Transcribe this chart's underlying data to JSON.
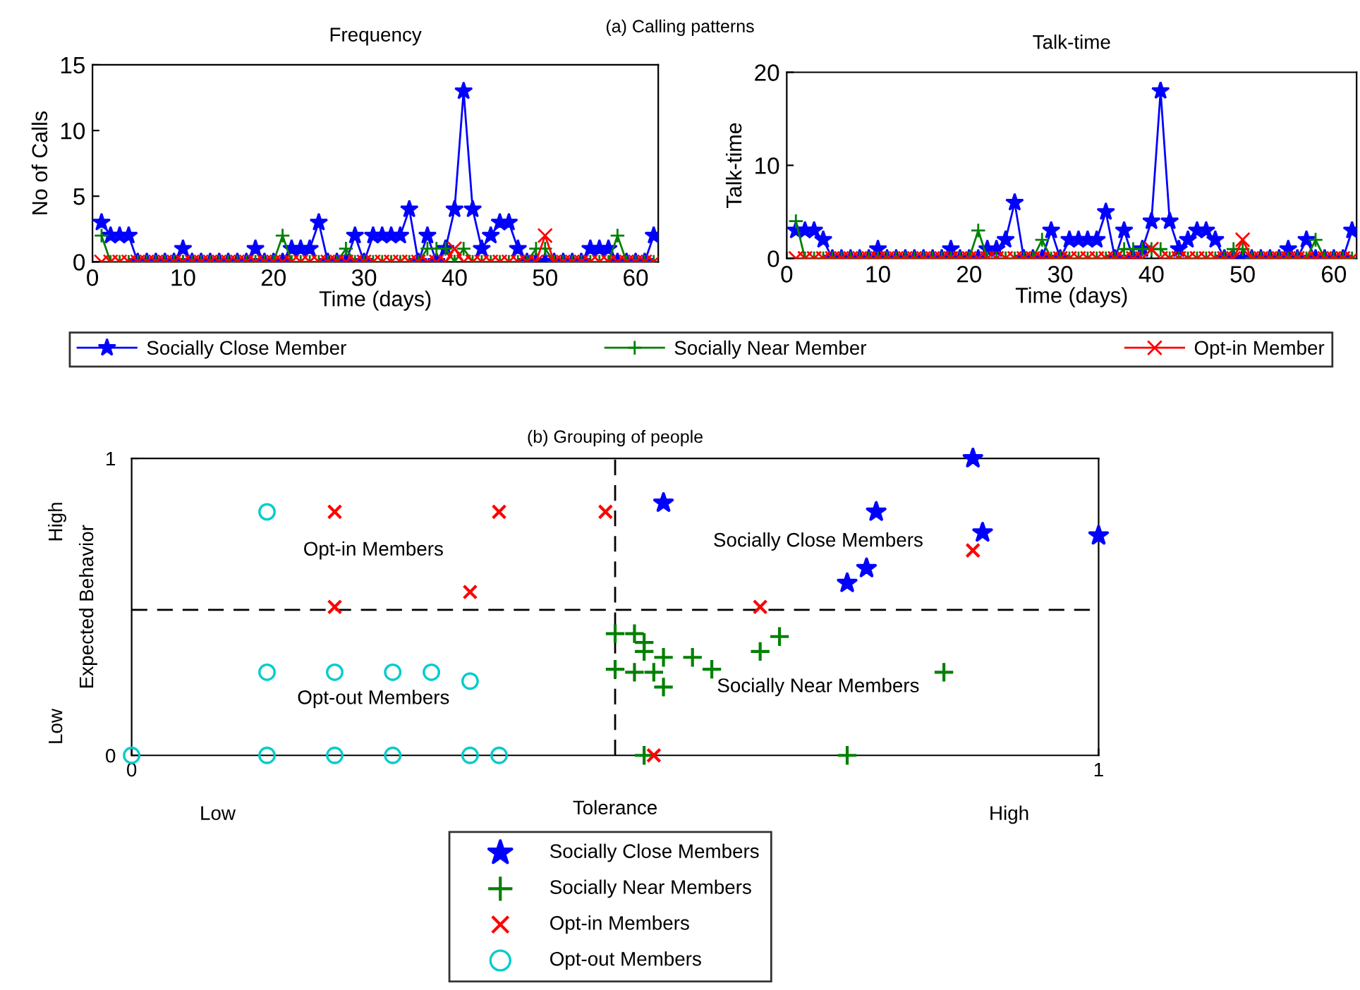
{
  "chart_data": [
    {
      "type": "line",
      "title": "Frequency",
      "xlabel": "Time (days)",
      "ylabel": "No of Calls",
      "annotations": [
        "(a) Calling patterns"
      ],
      "x": [
        1,
        2,
        3,
        4,
        5,
        6,
        7,
        8,
        9,
        10,
        11,
        12,
        13,
        14,
        15,
        16,
        17,
        18,
        19,
        20,
        21,
        22,
        23,
        24,
        25,
        26,
        27,
        28,
        29,
        30,
        31,
        32,
        33,
        34,
        35,
        36,
        37,
        38,
        39,
        40,
        41,
        42,
        43,
        44,
        45,
        46,
        47,
        48,
        49,
        50,
        51,
        52,
        53,
        54,
        55,
        56,
        57,
        58,
        59,
        60,
        61,
        62
      ],
      "xlim": [
        0,
        62.5
      ],
      "xticks": [
        0,
        10,
        20,
        30,
        40,
        50,
        60
      ],
      "ylim": [
        0,
        15
      ],
      "yticks": [
        0,
        5,
        10,
        15
      ],
      "grid": false,
      "legend": "bottom",
      "series": [
        {
          "name": "Socially Close Member",
          "color": "#0000ff",
          "marker": "star",
          "values": [
            3,
            2,
            2,
            2,
            0,
            0,
            0,
            0,
            0,
            1,
            0,
            0,
            0,
            0,
            0,
            0,
            0,
            1,
            0,
            0,
            0,
            1,
            1,
            1,
            3,
            0,
            0,
            0,
            2,
            0,
            2,
            2,
            2,
            2,
            4,
            0,
            2,
            0,
            1,
            4,
            13,
            4,
            1,
            2,
            3,
            3,
            1,
            0,
            0,
            0,
            0,
            0,
            0,
            0,
            1,
            1,
            1,
            0,
            0,
            0,
            0,
            2
          ]
        },
        {
          "name": "Socially Near Member",
          "color": "#008000",
          "marker": "plus",
          "values": [
            2,
            0,
            0,
            0,
            0,
            0,
            0,
            0,
            0,
            0,
            0,
            0,
            0,
            0,
            0,
            0,
            0,
            0,
            0,
            0,
            2,
            0,
            0,
            0,
            0,
            0,
            0,
            1,
            0,
            0,
            0,
            0,
            0,
            0,
            0,
            0,
            1,
            1,
            1,
            0,
            1,
            0,
            0,
            0,
            0,
            0,
            0,
            0,
            1,
            1,
            0,
            0,
            0,
            0,
            0,
            0,
            0,
            2,
            0,
            0,
            0,
            0
          ]
        },
        {
          "name": "Opt-in Member",
          "color": "#ff0000",
          "marker": "x",
          "values": [
            0,
            0,
            0,
            0,
            0,
            0,
            0,
            0,
            0,
            0,
            0,
            0,
            0,
            0,
            0,
            0,
            0,
            0,
            0,
            0,
            0,
            0,
            0,
            0,
            0,
            0,
            0,
            0,
            0,
            0,
            0,
            0,
            0,
            0,
            0,
            0,
            0,
            0,
            0,
            1,
            0,
            0,
            0,
            0,
            0,
            0,
            0,
            0,
            0,
            2,
            0,
            0,
            0,
            0,
            0,
            0,
            0,
            0,
            0,
            0,
            0,
            0
          ]
        }
      ]
    },
    {
      "type": "line",
      "title": "Talk-time",
      "xlabel": "Time (days)",
      "ylabel": "Talk-time",
      "x": [
        1,
        2,
        3,
        4,
        5,
        6,
        7,
        8,
        9,
        10,
        11,
        12,
        13,
        14,
        15,
        16,
        17,
        18,
        19,
        20,
        21,
        22,
        23,
        24,
        25,
        26,
        27,
        28,
        29,
        30,
        31,
        32,
        33,
        34,
        35,
        36,
        37,
        38,
        39,
        40,
        41,
        42,
        43,
        44,
        45,
        46,
        47,
        48,
        49,
        50,
        51,
        52,
        53,
        54,
        55,
        56,
        57,
        58,
        59,
        60,
        61,
        62
      ],
      "xlim": [
        0,
        62.5
      ],
      "xticks": [
        0,
        10,
        20,
        30,
        40,
        50,
        60
      ],
      "ylim": [
        0,
        20
      ],
      "yticks": [
        0,
        10,
        20
      ],
      "grid": false,
      "series": [
        {
          "color": "#0000ff",
          "marker": "star",
          "values": [
            3,
            3,
            3,
            2,
            0,
            0,
            0,
            0,
            0,
            1,
            0,
            0,
            0,
            0,
            0,
            0,
            0,
            1,
            0,
            0,
            0,
            1,
            1,
            2,
            6,
            0,
            0,
            0,
            3,
            0,
            2,
            2,
            2,
            2,
            5,
            0,
            3,
            0,
            1,
            4,
            18,
            4,
            1,
            2,
            3,
            3,
            2,
            0,
            0,
            0,
            0,
            0,
            0,
            0,
            1,
            0,
            2,
            0,
            0,
            0,
            0,
            3
          ]
        },
        {
          "color": "#008000",
          "marker": "plus",
          "values": [
            4,
            0,
            0,
            0,
            0,
            0,
            0,
            0,
            0,
            0,
            0,
            0,
            0,
            0,
            0,
            0,
            0,
            0,
            0,
            0,
            3,
            0,
            0,
            0,
            0,
            0,
            0,
            2,
            0,
            0,
            0,
            0,
            0,
            0,
            0,
            0,
            1,
            1,
            1,
            1,
            1,
            0,
            0,
            0,
            0,
            0,
            0,
            0,
            1,
            1,
            0,
            0,
            0,
            0,
            0,
            0,
            0,
            2,
            0,
            0,
            0,
            0
          ]
        },
        {
          "color": "#ff0000",
          "marker": "x",
          "values": [
            0,
            0,
            0,
            0,
            0,
            0,
            0,
            0,
            0,
            0,
            0,
            0,
            0,
            0,
            0,
            0,
            0,
            0,
            0,
            0,
            0,
            0,
            0,
            0,
            0,
            0,
            0,
            0,
            0,
            0,
            0,
            0,
            0,
            0,
            0,
            0,
            0,
            0,
            0,
            1,
            0,
            0,
            0,
            0,
            0,
            0,
            0,
            0,
            0,
            2,
            0,
            0,
            0,
            0,
            0,
            0,
            0,
            0,
            0,
            0,
            0,
            0
          ]
        }
      ]
    },
    {
      "type": "scatter",
      "title": "(b) Grouping of people",
      "xlabel": "Tolerance",
      "ylabel": "Expected Behavior",
      "xlim": [
        0,
        1
      ],
      "xticks": [
        0,
        1
      ],
      "ylim": [
        0,
        1
      ],
      "yticks": [
        0,
        1
      ],
      "grid": false,
      "legend": "bottom",
      "annotations": [
        "High",
        "Low",
        "Low",
        "High",
        "Opt-in Members",
        "Opt-out Members",
        "Socially Close Members",
        "Socially Near Members"
      ],
      "ref_lines": [
        {
          "axis": "x",
          "value": 0.5,
          "color": "#000000",
          "line_style": "dashed"
        },
        {
          "axis": "y",
          "value": 0.49,
          "color": "#000000",
          "line_style": "dashed"
        }
      ],
      "series": [
        {
          "name": "Socially Close Members",
          "color": "#0000ff",
          "marker": "star",
          "x": [
            0.55,
            0.77,
            0.87,
            0.88,
            1.0,
            0.76,
            0.74
          ],
          "values": [
            0.85,
            0.82,
            1.0,
            0.75,
            0.74,
            0.63,
            0.58
          ]
        },
        {
          "name": "Socially Near Members",
          "color": "#008000",
          "marker": "plus",
          "x": [
            0.5,
            0.52,
            0.53,
            0.53,
            0.55,
            0.58,
            0.6,
            0.5,
            0.52,
            0.54,
            0.55,
            0.65,
            0.67,
            0.84,
            0.53,
            0.74
          ],
          "values": [
            0.41,
            0.41,
            0.38,
            0.35,
            0.33,
            0.33,
            0.29,
            0.29,
            0.28,
            0.28,
            0.23,
            0.35,
            0.4,
            0.28,
            0,
            0
          ]
        },
        {
          "name": "Opt-in Members",
          "color": "#ff0000",
          "marker": "x",
          "x": [
            0.21,
            0.38,
            0.49,
            0.21,
            0.35,
            0.65,
            0.87,
            0.54
          ],
          "values": [
            0.82,
            0.82,
            0.82,
            0.5,
            0.55,
            0.5,
            0.69,
            0
          ]
        },
        {
          "name": "Opt-out Members",
          "color": "#00cccc",
          "marker": "circle",
          "x": [
            0,
            0.14,
            0.14,
            0.21,
            0.27,
            0.31,
            0.35,
            0.14,
            0.21,
            0.27,
            0.35,
            0.38
          ],
          "values": [
            0,
            0.82,
            0.28,
            0.28,
            0.28,
            0.28,
            0.25,
            0,
            0,
            0,
            0,
            0
          ]
        }
      ]
    }
  ]
}
